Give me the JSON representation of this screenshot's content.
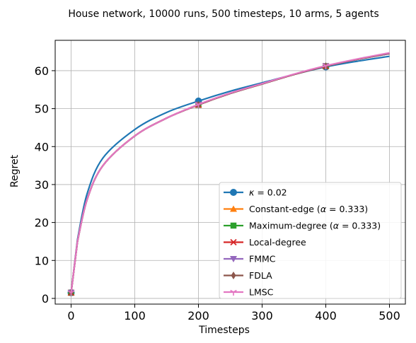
{
  "chart_data": {
    "type": "line",
    "title": "House network, 10000 runs, 500 timesteps, 10 arms, 5 agents",
    "xlabel": "Timesteps",
    "ylabel": "Regret",
    "xlim": [
      -25,
      525
    ],
    "ylim": [
      -1.5,
      68
    ],
    "xticks": [
      0,
      100,
      200,
      300,
      400,
      500
    ],
    "yticks": [
      0,
      10,
      20,
      30,
      40,
      50,
      60
    ],
    "xtick_labels": [
      "0",
      "100",
      "200",
      "300",
      "400",
      "500"
    ],
    "ytick_labels": [
      "0",
      "10",
      "20",
      "30",
      "40",
      "50",
      "60"
    ],
    "grid": true,
    "legend_position": "lower-right",
    "x": [
      0,
      10,
      25,
      50,
      100,
      150,
      200,
      250,
      300,
      350,
      400,
      450,
      500
    ],
    "series": [
      {
        "name": "κ = 0.02",
        "label_prefix": "κ",
        "label_suffix": " = 0.02",
        "color": "#1f77b4",
        "marker": "circle",
        "values": [
          1.5,
          15.5,
          27.5,
          37,
          44.5,
          49,
          52,
          54.6,
          56.8,
          59,
          61,
          62.5,
          63.8
        ]
      },
      {
        "name": "Constant-edge (α = 0.333)",
        "label_prefix": "Constant-edge (",
        "label_greek": "α",
        "label_suffix": " = 0.333)",
        "color": "#ff7f0e",
        "marker": "triangle-up",
        "values": [
          1.5,
          15,
          26,
          35,
          42.8,
          47.5,
          51,
          54,
          56.5,
          59,
          61.2,
          63,
          64.5
        ]
      },
      {
        "name": "Maximum-degree (α = 0.333)",
        "label_prefix": "Maximum-degree (",
        "label_greek": "α",
        "label_suffix": " = 0.333)",
        "color": "#2ca02c",
        "marker": "square",
        "values": [
          1.5,
          15,
          26,
          35,
          42.8,
          47.5,
          51,
          54,
          56.5,
          59,
          61.2,
          63,
          64.5
        ]
      },
      {
        "name": "Local-degree",
        "label_prefix": "Local-degree",
        "color": "#d62728",
        "marker": "x",
        "values": [
          1.5,
          15,
          26,
          35,
          42.8,
          47.5,
          51,
          54,
          56.5,
          59,
          61.2,
          63,
          64.5
        ]
      },
      {
        "name": "FMMC",
        "label_prefix": "FMMC",
        "color": "#9467bd",
        "marker": "triangle-down",
        "values": [
          1.5,
          15,
          26,
          35,
          42.8,
          47.5,
          51,
          54,
          56.5,
          59,
          61.2,
          63,
          64.5
        ]
      },
      {
        "name": "FDLA",
        "label_prefix": "FDLA",
        "color": "#8c564b",
        "marker": "diamond",
        "values": [
          1.5,
          15,
          26,
          35,
          42.8,
          47.5,
          51,
          54,
          56.5,
          59,
          61.2,
          63,
          64.6
        ]
      },
      {
        "name": "LMSC",
        "label_prefix": "LMSC",
        "color": "#e377c2",
        "marker": "tri-down",
        "values": [
          1.5,
          15,
          26,
          35,
          42.8,
          47.5,
          51.1,
          54.1,
          56.6,
          59.1,
          61.3,
          63.1,
          64.7
        ]
      }
    ],
    "marker_x": [
      0,
      200,
      400
    ]
  }
}
